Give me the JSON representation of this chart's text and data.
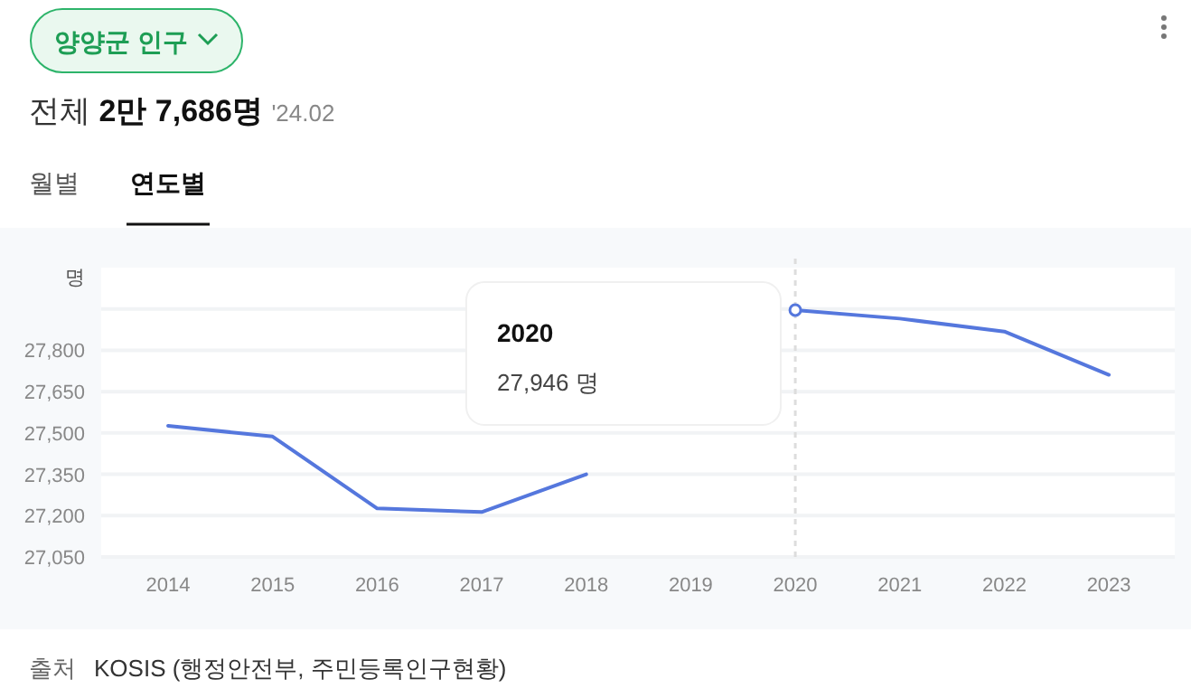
{
  "chart_data": {
    "type": "line",
    "title": "양양군 인구",
    "subtitle": "전체 2만 7,686명 '24.02",
    "ylabel": "명",
    "categories": [
      "2014",
      "2015",
      "2016",
      "2017",
      "2018",
      "2019",
      "2020",
      "2021",
      "2022",
      "2023"
    ],
    "values": [
      27526,
      27487,
      27226,
      27213,
      27350,
      null,
      27946,
      27915,
      27868,
      27711
    ],
    "color": "#5577dd",
    "ylim": [
      27050,
      28100
    ],
    "yticks": [
      {
        "value": 27050,
        "label": "27,050"
      },
      {
        "value": 27200,
        "label": "27,200"
      },
      {
        "value": 27350,
        "label": "27,350"
      },
      {
        "value": 27500,
        "label": "27,500"
      },
      {
        "value": 27650,
        "label": "27,650"
      },
      {
        "value": 27800,
        "label": "27,800"
      },
      {
        "value": 27950,
        "label": null
      }
    ],
    "grid": "y",
    "ref_lines": [
      {
        "axis": "x",
        "value": "2020",
        "color": "#dddddd",
        "line_style": "dotted"
      }
    ],
    "annotations": [
      "월별",
      "연도별",
      "2020",
      "27,946 명",
      "출처",
      "KOSIS (행정안전부, 주민등록인구현황)"
    ]
  }
}
